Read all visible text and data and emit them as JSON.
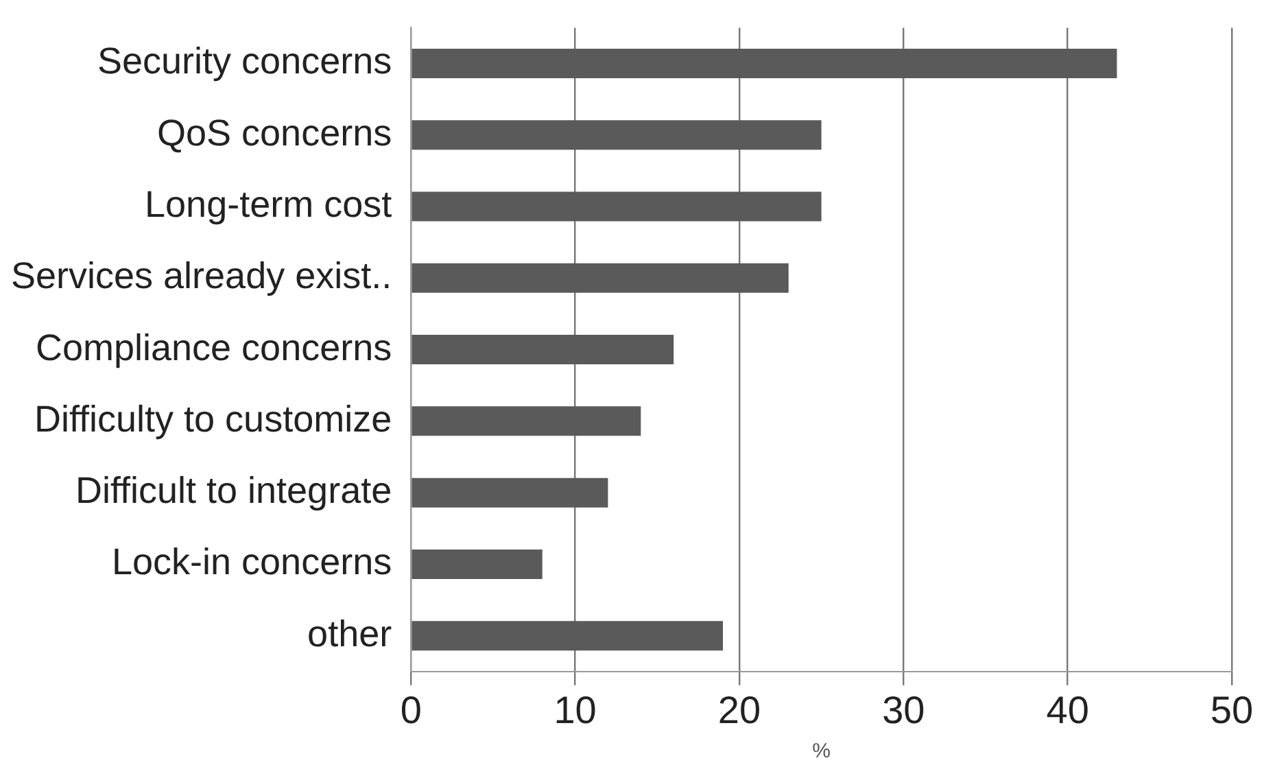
{
  "chart_data": {
    "type": "bar",
    "orientation": "horizontal",
    "xlabel": "%",
    "categories": [
      "Security concerns",
      "QoS concerns",
      "Long-term cost",
      "Services already exist..",
      "Compliance concerns",
      "Difficulty to customize",
      "Difficult to integrate",
      "Lock-in concerns",
      "other"
    ],
    "values": [
      43,
      25,
      25,
      23,
      16,
      14,
      12,
      8,
      19
    ],
    "color": "#5a5a5a",
    "xlim": [
      0,
      50
    ],
    "xticks": [
      0,
      10,
      20,
      30,
      40,
      50
    ],
    "grid": "x",
    "legend": false
  }
}
